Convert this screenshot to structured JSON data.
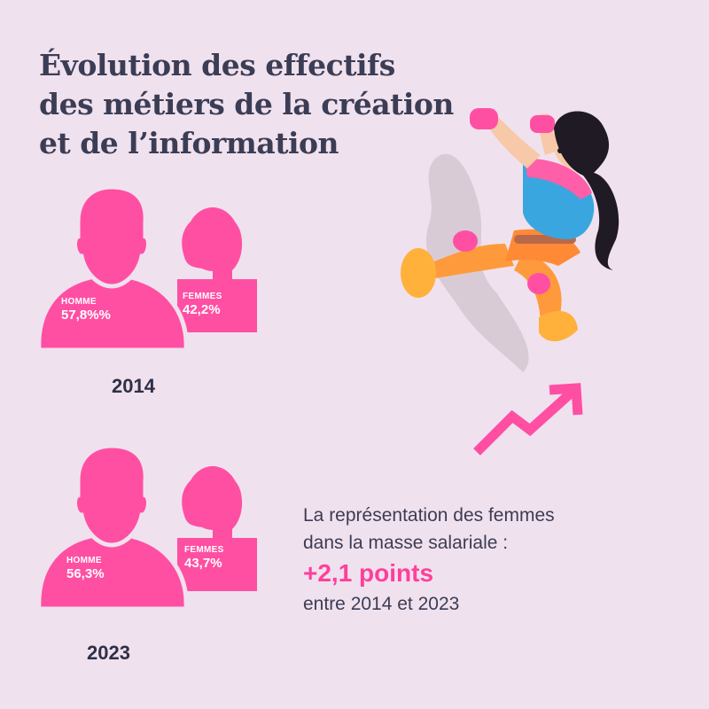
{
  "title": {
    "line1": "Évolution des effectifs",
    "line2": "des métiers de la création",
    "line3": "et de l’information"
  },
  "years": [
    {
      "year": "2014",
      "homme_label": "HOMME",
      "homme_value": "57,8%%",
      "femmes_label": "FEMMES",
      "femmes_value": "42,2%"
    },
    {
      "year": "2023",
      "homme_label": "HOMME",
      "homme_value": "56,3%",
      "femmes_label": "FEMMES",
      "femmes_value": "43,7%"
    }
  ],
  "stat": {
    "line1": "La représentation des femmes",
    "line2": "dans la masse salariale :",
    "highlight": "+2,1 points",
    "line3": "entre 2014 et 2023"
  },
  "colors": {
    "accent": "#ff3f9a",
    "icon": "#ff4fa3",
    "background": "#f0e1ee",
    "text": "#3b3d55"
  },
  "icons": [
    "man-silhouette-icon",
    "woman-silhouette-icon",
    "rising-arrow-icon",
    "climber-illustration"
  ]
}
